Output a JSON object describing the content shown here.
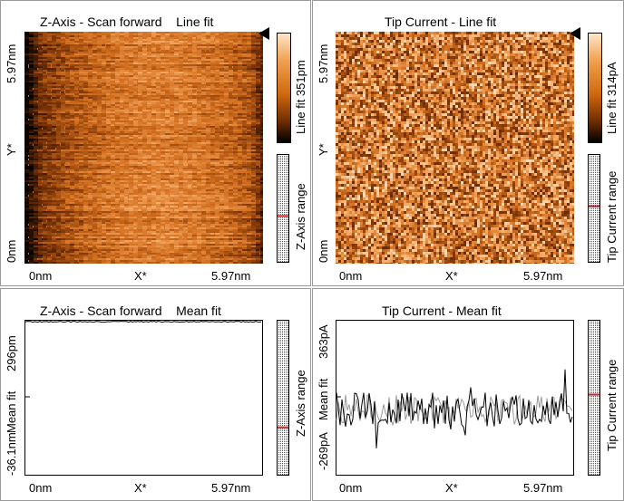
{
  "colors": {
    "panel_border": "#9a9a9a",
    "map_low": "#1a0800",
    "map_mid": "#e07a1c",
    "map_high": "#ffe6c8",
    "range_marker": "#cc2020",
    "trace_forward": "#000000",
    "trace_backward": "#9a9a9a"
  },
  "panels": {
    "z_line": {
      "title": "Z-Axis - Scan forward    Line fit",
      "y_top": "5.97nm",
      "y_mid": "Y*",
      "y_bottom": "0nm",
      "x_left": "0nm",
      "x_mid": "X*",
      "x_right": "5.97nm",
      "colorbar_label": "Line fit 351pm",
      "range_label": "Z-Axis range",
      "range_marker_level": 0.43
    },
    "tip_line": {
      "title": "Tip Current - Line fit",
      "y_top": "5.97nm",
      "y_mid": "Y*",
      "y_bottom": "0nm",
      "x_left": "0nm",
      "x_mid": "X*",
      "x_right": "5.97nm",
      "colorbar_label": "Line fit 314pA",
      "range_label": "Tip Current range",
      "range_marker_level": 0.52
    },
    "z_mean": {
      "title": "Z-Axis - Scan forward    Mean fit",
      "y_top": "296pm",
      "y_mid": "Mean fit",
      "y_bottom": "-36.1nm",
      "x_left": "0nm",
      "x_mid": "X*",
      "x_right": "5.97nm",
      "range_label": "Z-Axis range",
      "range_marker_level": 0.31
    },
    "tip_mean": {
      "title": "Tip Current - Mean fit",
      "y_top": "363pA",
      "y_mid": "Mean fit",
      "y_bottom": "-269pA",
      "x_left": "0nm",
      "x_mid": "X*",
      "x_right": "5.97nm",
      "range_label": "Tip Current range",
      "range_marker_level": 0.52
    }
  }
}
